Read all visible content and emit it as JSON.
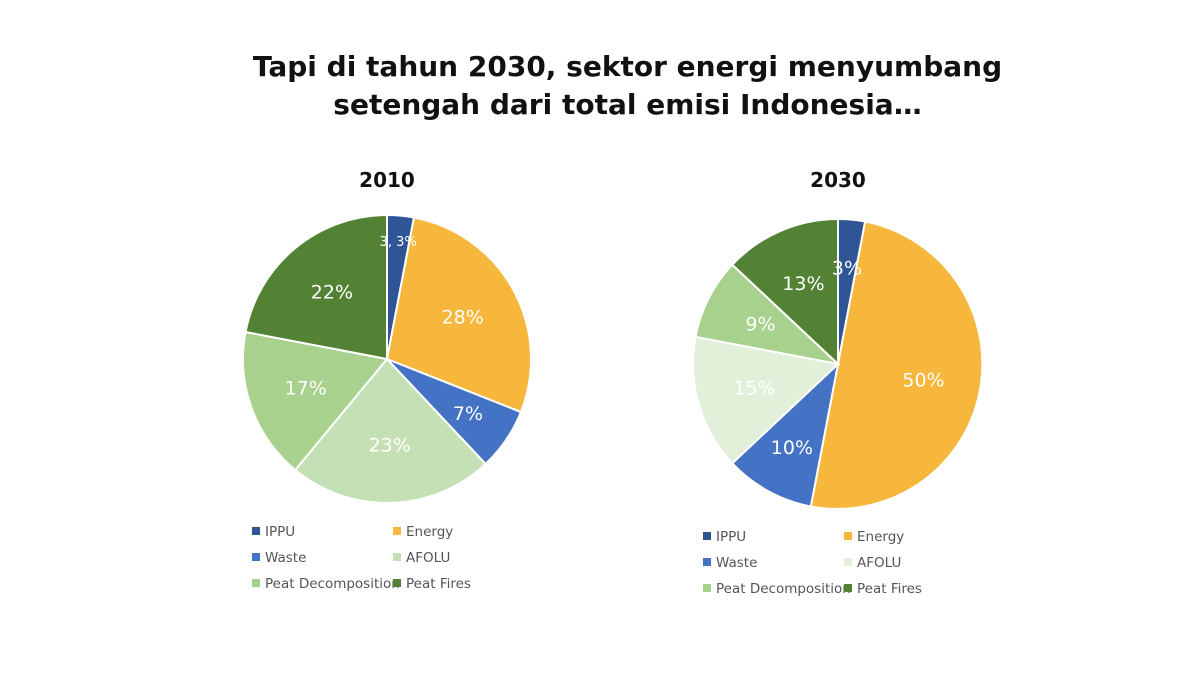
{
  "page": {
    "title_line1": "Tapi di tahun 2030, sektor energi menyumbang",
    "title_line2": "setengah dari total emisi Indonesia…"
  },
  "colors": {
    "IPPU": "#2f5597",
    "Energy": "#f6b73c",
    "Waste": "#4472c4",
    "AFOLU_2010": "#c5e0b4",
    "AFOLU_2030": "#e2f0d9",
    "Peat Decomposition": "#a9d18e",
    "Peat Fires": "#548235"
  },
  "chart_data": [
    {
      "type": "pie",
      "title": "2010",
      "categories": [
        "IPPU",
        "Energy",
        "Waste",
        "AFOLU",
        "Peat Decomposition",
        "Peat Fires"
      ],
      "values": [
        3,
        28,
        7,
        23,
        17,
        22
      ],
      "data_labels": [
        "3, 3%",
        "28%",
        "7%",
        "23%",
        "17%",
        "22%"
      ],
      "legend": [
        "IPPU",
        "Energy",
        "Waste",
        "AFOLU",
        "Peat Decomposition",
        "Peat Fires"
      ],
      "legend_placement": "bottom"
    },
    {
      "type": "pie",
      "title": "2030",
      "categories": [
        "IPPU",
        "Energy",
        "Waste",
        "AFOLU",
        "Peat Decomposition",
        "Peat Fires"
      ],
      "values": [
        3,
        50,
        10,
        15,
        9,
        13
      ],
      "data_labels": [
        "3%",
        "50%",
        "10%",
        "15%",
        "9%",
        "13%"
      ],
      "legend": [
        "IPPU",
        "Energy",
        "Waste",
        "AFOLU",
        "Peat Decomposition",
        "Peat Fires"
      ],
      "legend_placement": "bottom"
    }
  ]
}
